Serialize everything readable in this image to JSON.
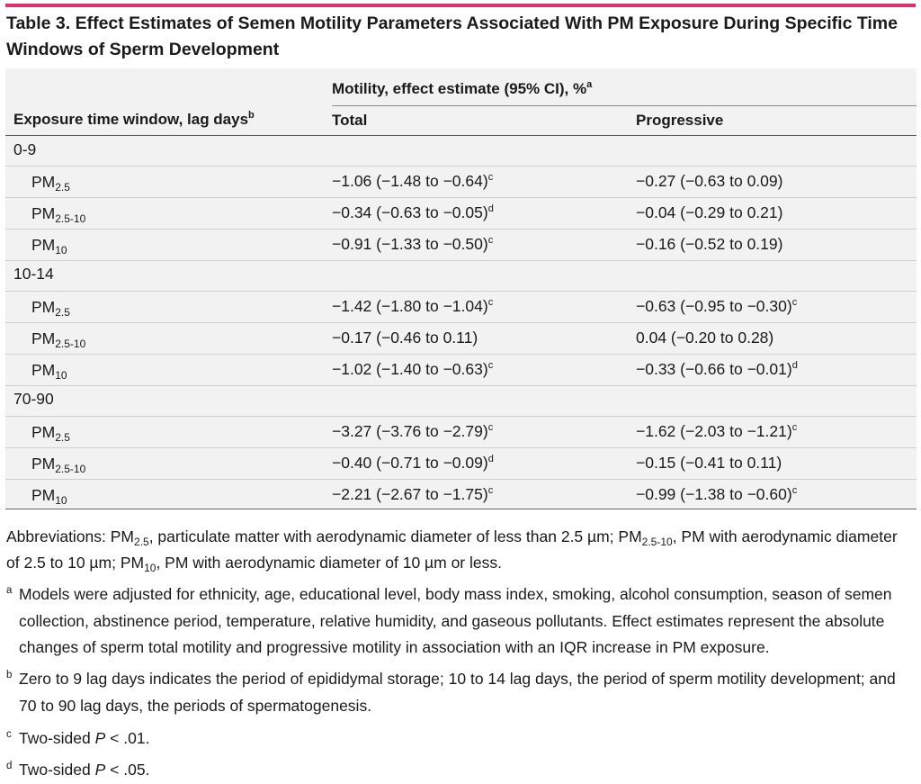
{
  "title": "Table 3. Effect Estimates of Semen Motility Parameters Associated With PM Exposure During Specific Time Windows of Sperm Development",
  "header": {
    "motility": "Motility, effect estimate (95% CI), %",
    "motility_sup": "a",
    "window": "Exposure time window, lag days",
    "window_sup": "b",
    "total": "Total",
    "progressive": "Progressive"
  },
  "groups": [
    {
      "label": "0-9",
      "rows": [
        {
          "pm": "PM",
          "pm_sub": "2.5",
          "total": "−1.06 (−1.48 to −0.64)",
          "total_sup": "c",
          "prog": "−0.27 (−0.63 to 0.09)",
          "prog_sup": ""
        },
        {
          "pm": "PM",
          "pm_sub": "2.5-10",
          "total": "−0.34 (−0.63 to −0.05)",
          "total_sup": "d",
          "prog": "−0.04 (−0.29 to 0.21)",
          "prog_sup": ""
        },
        {
          "pm": "PM",
          "pm_sub": "10",
          "total": "−0.91 (−1.33 to −0.50)",
          "total_sup": "c",
          "prog": "−0.16 (−0.52 to 0.19)",
          "prog_sup": ""
        }
      ]
    },
    {
      "label": "10-14",
      "rows": [
        {
          "pm": "PM",
          "pm_sub": "2.5",
          "total": "−1.42 (−1.80 to −1.04)",
          "total_sup": "c",
          "prog": "−0.63 (−0.95 to −0.30)",
          "prog_sup": "c"
        },
        {
          "pm": "PM",
          "pm_sub": "2.5-10",
          "total": "−0.17 (−0.46 to 0.11)",
          "total_sup": "",
          "prog": "0.04 (−0.20 to 0.28)",
          "prog_sup": ""
        },
        {
          "pm": "PM",
          "pm_sub": "10",
          "total": "−1.02 (−1.40 to −0.63)",
          "total_sup": "c",
          "prog": "−0.33 (−0.66 to −0.01)",
          "prog_sup": "d"
        }
      ]
    },
    {
      "label": "70-90",
      "rows": [
        {
          "pm": "PM",
          "pm_sub": "2.5",
          "total": "−3.27 (−3.76 to −2.79)",
          "total_sup": "c",
          "prog": "−1.62 (−2.03 to −1.21)",
          "prog_sup": "c"
        },
        {
          "pm": "PM",
          "pm_sub": "2.5-10",
          "total": "−0.40 (−0.71 to −0.09)",
          "total_sup": "d",
          "prog": "−0.15 (−0.41 to 0.11)",
          "prog_sup": ""
        },
        {
          "pm": "PM",
          "pm_sub": "10",
          "total": "−2.21 (−2.67 to −1.75)",
          "total_sup": "c",
          "prog": "−0.99 (−1.38 to −0.60)",
          "prog_sup": "c"
        }
      ]
    }
  ],
  "abbreviations": {
    "p1": "Abbreviations: PM",
    "s1": "2.5",
    "p2": ", particulate matter with aerodynamic diameter of less than 2.5 µm; PM",
    "s2": "2.5-10",
    "p3": ", PM with aerodynamic diameter of 2.5 to 10 µm; PM",
    "s3": "10",
    "p4": ", PM with aerodynamic diameter of 10 µm or less."
  },
  "footnotes": {
    "a": {
      "marker": "a",
      "text": "Models were adjusted for ethnicity, age, educational level, body mass index, smoking, alcohol consumption, season of semen collection, abstinence period, temperature, relative humidity, and gaseous pollutants. Effect estimates represent the absolute changes of sperm total motility and progressive motility in association with an IQR increase in PM exposure."
    },
    "b": {
      "marker": "b",
      "text": "Zero to 9 lag days indicates the period of epididymal storage; 10 to 14 lag days, the period of sperm motility development; and 70 to 90 lag days, the periods of spermatogenesis."
    },
    "c": {
      "marker": "c",
      "pre": "Two-sided ",
      "italic": "P",
      "post": " < .01."
    },
    "d": {
      "marker": "d",
      "pre": "Two-sided ",
      "italic": "P",
      "post": " < .05."
    }
  }
}
